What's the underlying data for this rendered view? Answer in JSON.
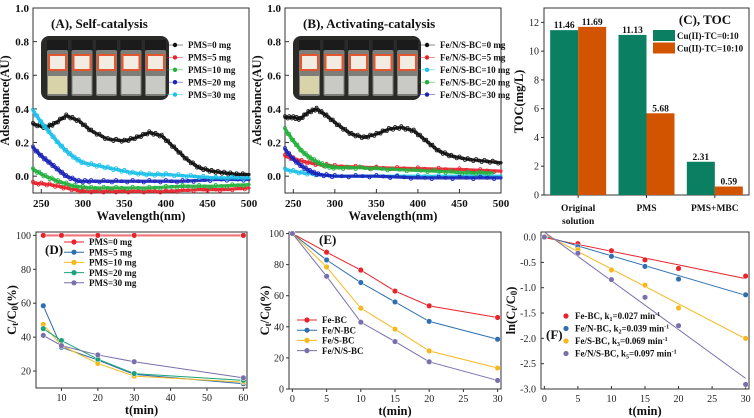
{
  "chart_data": [
    {
      "id": "A",
      "type": "scatter",
      "title": "(A), Self-catalysis",
      "xlabel": "Wavelength(nm)",
      "ylabel": "Adsorbance(AU)",
      "xlim": [
        240,
        500
      ],
      "ylim": [
        -0.1,
        1.0
      ],
      "xticks": [
        250,
        300,
        350,
        400,
        450,
        500
      ],
      "yticks": [
        "0.0",
        "0.2",
        "0.4",
        "0.6",
        "0.8",
        "1.0"
      ],
      "legend_position": "top-right",
      "inset_photo": "five sample vials",
      "series": [
        {
          "name": "PMS=0 mg",
          "color": "#111111",
          "x": [
            240,
            255,
            265,
            280,
            295,
            310,
            330,
            350,
            365,
            380,
            395,
            410,
            425,
            440,
            455,
            470,
            485,
            500
          ],
          "y": [
            0.31,
            0.29,
            0.31,
            0.36,
            0.33,
            0.27,
            0.22,
            0.21,
            0.23,
            0.26,
            0.24,
            0.17,
            0.1,
            0.05,
            0.03,
            0.02,
            0.01,
            0.01
          ]
        },
        {
          "name": "PMS=5 mg",
          "color": "#e8212b",
          "x": [
            240,
            260,
            280,
            300,
            330,
            360,
            400,
            440,
            470,
            500
          ],
          "y": [
            -0.04,
            -0.05,
            -0.07,
            -0.09,
            -0.09,
            -0.09,
            -0.09,
            -0.08,
            -0.08,
            -0.07
          ]
        },
        {
          "name": "PMS=10 mg",
          "color": "#22b03c",
          "x": [
            240,
            255,
            270,
            290,
            310,
            340,
            380,
            420,
            460,
            500
          ],
          "y": [
            0.04,
            0.0,
            -0.03,
            -0.06,
            -0.07,
            -0.07,
            -0.07,
            -0.06,
            -0.06,
            -0.05
          ]
        },
        {
          "name": "PMS=20 mg",
          "color": "#1a22b8",
          "x": [
            240,
            250,
            260,
            270,
            280,
            295,
            310,
            340,
            380,
            420,
            460,
            500
          ],
          "y": [
            0.17,
            0.12,
            0.08,
            0.04,
            0.0,
            -0.03,
            -0.03,
            -0.03,
            -0.03,
            -0.03,
            -0.02,
            -0.02
          ]
        },
        {
          "name": "PMS=30 mg",
          "color": "#1cc0ea",
          "x": [
            240,
            250,
            260,
            270,
            280,
            290,
            300,
            320,
            340,
            360,
            380,
            400,
            430,
            460,
            500
          ],
          "y": [
            0.39,
            0.32,
            0.26,
            0.2,
            0.15,
            0.11,
            0.08,
            0.06,
            0.04,
            0.02,
            0.01,
            0.01,
            0.0,
            -0.01,
            -0.01
          ]
        }
      ]
    },
    {
      "id": "B",
      "type": "scatter",
      "title": "(B), Activating-catalysis",
      "xlabel": "Wavelength(nm)",
      "ylabel": "Adsorbance(AU)",
      "xlim": [
        240,
        500
      ],
      "ylim": [
        -0.1,
        1.0
      ],
      "xticks": [
        250,
        300,
        350,
        400,
        450,
        500
      ],
      "yticks": [
        "0.0",
        "0.2",
        "0.4",
        "0.6",
        "0.8",
        "1.0"
      ],
      "legend_position": "top-right",
      "inset_photo": "five sample vials",
      "series": [
        {
          "name": "Fe/N/S-BC=0 mg",
          "color": "#111111",
          "x": [
            240,
            250,
            258,
            268,
            278,
            290,
            305,
            320,
            335,
            350,
            365,
            380,
            395,
            410,
            425,
            440,
            460,
            480,
            500
          ],
          "y": [
            0.35,
            0.35,
            0.34,
            0.38,
            0.4,
            0.36,
            0.3,
            0.25,
            0.23,
            0.25,
            0.28,
            0.29,
            0.27,
            0.21,
            0.15,
            0.12,
            0.1,
            0.09,
            0.08
          ]
        },
        {
          "name": "Fe/N/S-BC=5 mg",
          "color": "#e8212b",
          "x": [
            240,
            260,
            280,
            300,
            350,
            400,
            450,
            500
          ],
          "y": [
            0.12,
            0.09,
            0.07,
            0.06,
            0.05,
            0.045,
            0.04,
            0.03
          ]
        },
        {
          "name": "Fe/N/S-BC=10 mg",
          "color": "#1cc0ea",
          "x": [
            240,
            260,
            280,
            300,
            350,
            400,
            450,
            500
          ],
          "y": [
            0.04,
            0.02,
            0.01,
            0.0,
            0.0,
            0.0,
            0.0,
            0.0
          ]
        },
        {
          "name": "Fe/N/S-BC=20 mg",
          "color": "#22b03c",
          "x": [
            240,
            250,
            260,
            270,
            280,
            290,
            300,
            330,
            370,
            420,
            460,
            490
          ],
          "y": [
            0.28,
            0.21,
            0.15,
            0.11,
            0.08,
            0.06,
            0.05,
            0.05,
            0.04,
            0.03,
            0.02,
            0.02
          ]
        },
        {
          "name": "Fe/N/S-BC=30 mg",
          "color": "#1a22b8",
          "x": [
            240,
            250,
            260,
            270,
            280,
            300,
            350,
            400,
            450,
            500
          ],
          "y": [
            0.16,
            0.1,
            0.06,
            0.03,
            0.01,
            0.0,
            0.0,
            -0.01,
            -0.01,
            -0.01
          ]
        }
      ]
    },
    {
      "id": "C",
      "type": "bar",
      "title": "(C), TOC",
      "xlabel": "",
      "ylabel": "TOC(mg/L)",
      "ylim": [
        0,
        13
      ],
      "yticks": [
        "0",
        "2",
        "4",
        "6",
        "8",
        "10",
        "12"
      ],
      "categories": [
        "Original solution",
        "PMS",
        "PMS+MBC"
      ],
      "category_lines": [
        [
          "Original",
          "solution"
        ],
        [
          "PMS"
        ],
        [
          "PMS+MBC"
        ]
      ],
      "legend_position": "top-right",
      "series": [
        {
          "name": "Cu(II)-TC=0:10",
          "color": "#0a7f62",
          "values": [
            11.46,
            11.13,
            2.31
          ],
          "labels": [
            "11.46",
            "11.13",
            "2.31"
          ]
        },
        {
          "name": "Cu(II)-TC=10:10",
          "color": "#d35400",
          "values": [
            11.69,
            5.68,
            0.59
          ],
          "labels": [
            "11.69",
            "5.68",
            "0.59"
          ]
        }
      ]
    },
    {
      "id": "D",
      "type": "line",
      "title": "(D)",
      "xlabel": "t(min)",
      "ylabel": "Ct/C0(%)",
      "xlim": [
        3,
        61
      ],
      "ylim": [
        10,
        102
      ],
      "xticks": [
        10,
        20,
        30,
        40,
        50,
        60
      ],
      "yticks": [
        20,
        40,
        60,
        80,
        100
      ],
      "legend_position": "top-left",
      "x": [
        5,
        10,
        20,
        30,
        60
      ],
      "series": [
        {
          "name": "PMS=0 mg",
          "color": "#e8232a",
          "values": [
            100,
            100,
            100,
            100,
            100
          ]
        },
        {
          "name": "PMS=5 mg",
          "color": "#2f6fb0",
          "values": [
            58.5,
            34,
            26.5,
            18,
            12.5
          ]
        },
        {
          "name": "PMS=10 mg",
          "color": "#f7b81c",
          "values": [
            47.5,
            35,
            24.5,
            17,
            13.5
          ]
        },
        {
          "name": "PMS=20 mg",
          "color": "#1aa37a",
          "values": [
            45,
            38,
            27,
            18.5,
            14.5
          ]
        },
        {
          "name": "PMS=30 mg",
          "color": "#7a6fab",
          "values": [
            41,
            35,
            29.5,
            25.5,
            16
          ]
        }
      ]
    },
    {
      "id": "E",
      "type": "line",
      "title": "(E)",
      "xlabel": "t(min)",
      "ylabel": "Ct/C0(%)",
      "xlim": [
        -0.5,
        30.5
      ],
      "ylim": [
        0,
        101
      ],
      "xticks": [
        0,
        5,
        10,
        15,
        20,
        25,
        30
      ],
      "yticks": [
        0,
        20,
        40,
        60,
        80,
        100
      ],
      "legend_position": "bottom-left",
      "x": [
        0,
        5,
        10,
        15,
        20,
        30
      ],
      "series": [
        {
          "name": "Fe-BC",
          "color": "#e8232a",
          "values": [
            100,
            88,
            76.5,
            63,
            53.5,
            46
          ]
        },
        {
          "name": "Fe/N-BC",
          "color": "#2f6fb0",
          "values": [
            100,
            83,
            68.5,
            56,
            43.5,
            32
          ]
        },
        {
          "name": "Fe/S-BC",
          "color": "#f7b81c",
          "values": [
            100,
            78.5,
            52,
            38.5,
            24.5,
            13.5
          ]
        },
        {
          "name": "Fe/N/S-BC",
          "color": "#7a6fab",
          "values": [
            100,
            72.5,
            43,
            30.5,
            17.5,
            5.5
          ]
        }
      ]
    },
    {
      "id": "F",
      "type": "scatter",
      "title": "(F)",
      "xlabel": "t(min)",
      "ylabel": "ln(Ct/C0)",
      "xlim": [
        -0.5,
        30.5
      ],
      "ylim": [
        -3.0,
        0.1
      ],
      "xticks": [
        0,
        5,
        10,
        15,
        20,
        25,
        30
      ],
      "yticks": [
        "0.0",
        "-0.5",
        "-1.0",
        "-1.5",
        "-2.0",
        "-2.5",
        "-3.0"
      ],
      "legend_position": "bottom-left",
      "x": [
        0,
        5,
        10,
        15,
        20,
        30
      ],
      "series": [
        {
          "name": "Fe-BC, k1=0.027 min-1",
          "sub": "1",
          "k": 0.027,
          "color": "#e8232a",
          "values": [
            0,
            -0.13,
            -0.27,
            -0.45,
            -0.62,
            -0.77
          ],
          "fit_intercept": -0.01
        },
        {
          "name": "Fe/N-BC, k2=0.039 min-1",
          "sub": "2",
          "k": 0.039,
          "color": "#2f6fb0",
          "values": [
            0,
            -0.19,
            -0.38,
            -0.58,
            -0.83,
            -1.14
          ],
          "fit_intercept": 0.02
        },
        {
          "name": "Fe/S-BC, k3=0.069 min-1",
          "sub": "3",
          "k": 0.069,
          "color": "#f7b81c",
          "values": [
            0,
            -0.25,
            -0.65,
            -0.95,
            -1.4,
            -2.0
          ],
          "fit_intercept": 0.06
        },
        {
          "name": "Fe/N/S-BC, k5=0.097 min-1",
          "sub": "5",
          "k": 0.097,
          "color": "#7a6fab",
          "values": [
            0,
            -0.32,
            -0.84,
            -1.19,
            -1.75,
            -2.91
          ],
          "fit_intercept": 0.12
        }
      ]
    }
  ]
}
